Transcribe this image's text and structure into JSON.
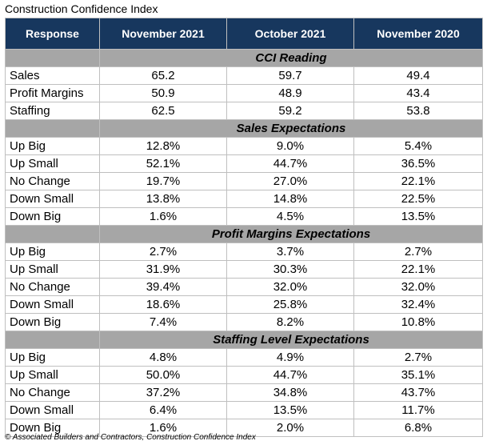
{
  "title": "Construction Confidence Index",
  "headers": [
    "Response",
    "November 2021",
    "October 2021",
    "November 2020"
  ],
  "sections": [
    {
      "title": "CCI Reading",
      "rows": [
        {
          "label": "Sales",
          "values": [
            "65.2",
            "59.7",
            "49.4"
          ]
        },
        {
          "label": "Profit Margins",
          "values": [
            "50.9",
            "48.9",
            "43.4"
          ]
        },
        {
          "label": "Staffing",
          "values": [
            "62.5",
            "59.2",
            "53.8"
          ]
        }
      ]
    },
    {
      "title": "Sales Expectations",
      "rows": [
        {
          "label": "Up Big",
          "values": [
            "12.8%",
            "9.0%",
            "5.4%"
          ]
        },
        {
          "label": "Up Small",
          "values": [
            "52.1%",
            "44.7%",
            "36.5%"
          ]
        },
        {
          "label": "No Change",
          "values": [
            "19.7%",
            "27.0%",
            "22.1%"
          ]
        },
        {
          "label": "Down Small",
          "values": [
            "13.8%",
            "14.8%",
            "22.5%"
          ]
        },
        {
          "label": "Down Big",
          "values": [
            "1.6%",
            "4.5%",
            "13.5%"
          ]
        }
      ]
    },
    {
      "title": "Profit Margins Expectations",
      "rows": [
        {
          "label": "Up Big",
          "values": [
            "2.7%",
            "3.7%",
            "2.7%"
          ]
        },
        {
          "label": "Up Small",
          "values": [
            "31.9%",
            "30.3%",
            "22.1%"
          ]
        },
        {
          "label": "No Change",
          "values": [
            "39.4%",
            "32.0%",
            "32.0%"
          ]
        },
        {
          "label": "Down Small",
          "values": [
            "18.6%",
            "25.8%",
            "32.4%"
          ]
        },
        {
          "label": "Down Big",
          "values": [
            "7.4%",
            "8.2%",
            "10.8%"
          ]
        }
      ]
    },
    {
      "title": "Staffing Level Expectations",
      "rows": [
        {
          "label": "Up Big",
          "values": [
            "4.8%",
            "4.9%",
            "2.7%"
          ]
        },
        {
          "label": "Up Small",
          "values": [
            "50.0%",
            "44.7%",
            "35.1%"
          ]
        },
        {
          "label": "No Change",
          "values": [
            "37.2%",
            "34.8%",
            "43.7%"
          ]
        },
        {
          "label": "Down Small",
          "values": [
            "6.4%",
            "13.5%",
            "11.7%"
          ]
        },
        {
          "label": "Down Big",
          "values": [
            "1.6%",
            "2.0%",
            "6.8%"
          ]
        }
      ]
    }
  ],
  "footer": "© Associated Builders and Contractors, Construction Confidence Index"
}
